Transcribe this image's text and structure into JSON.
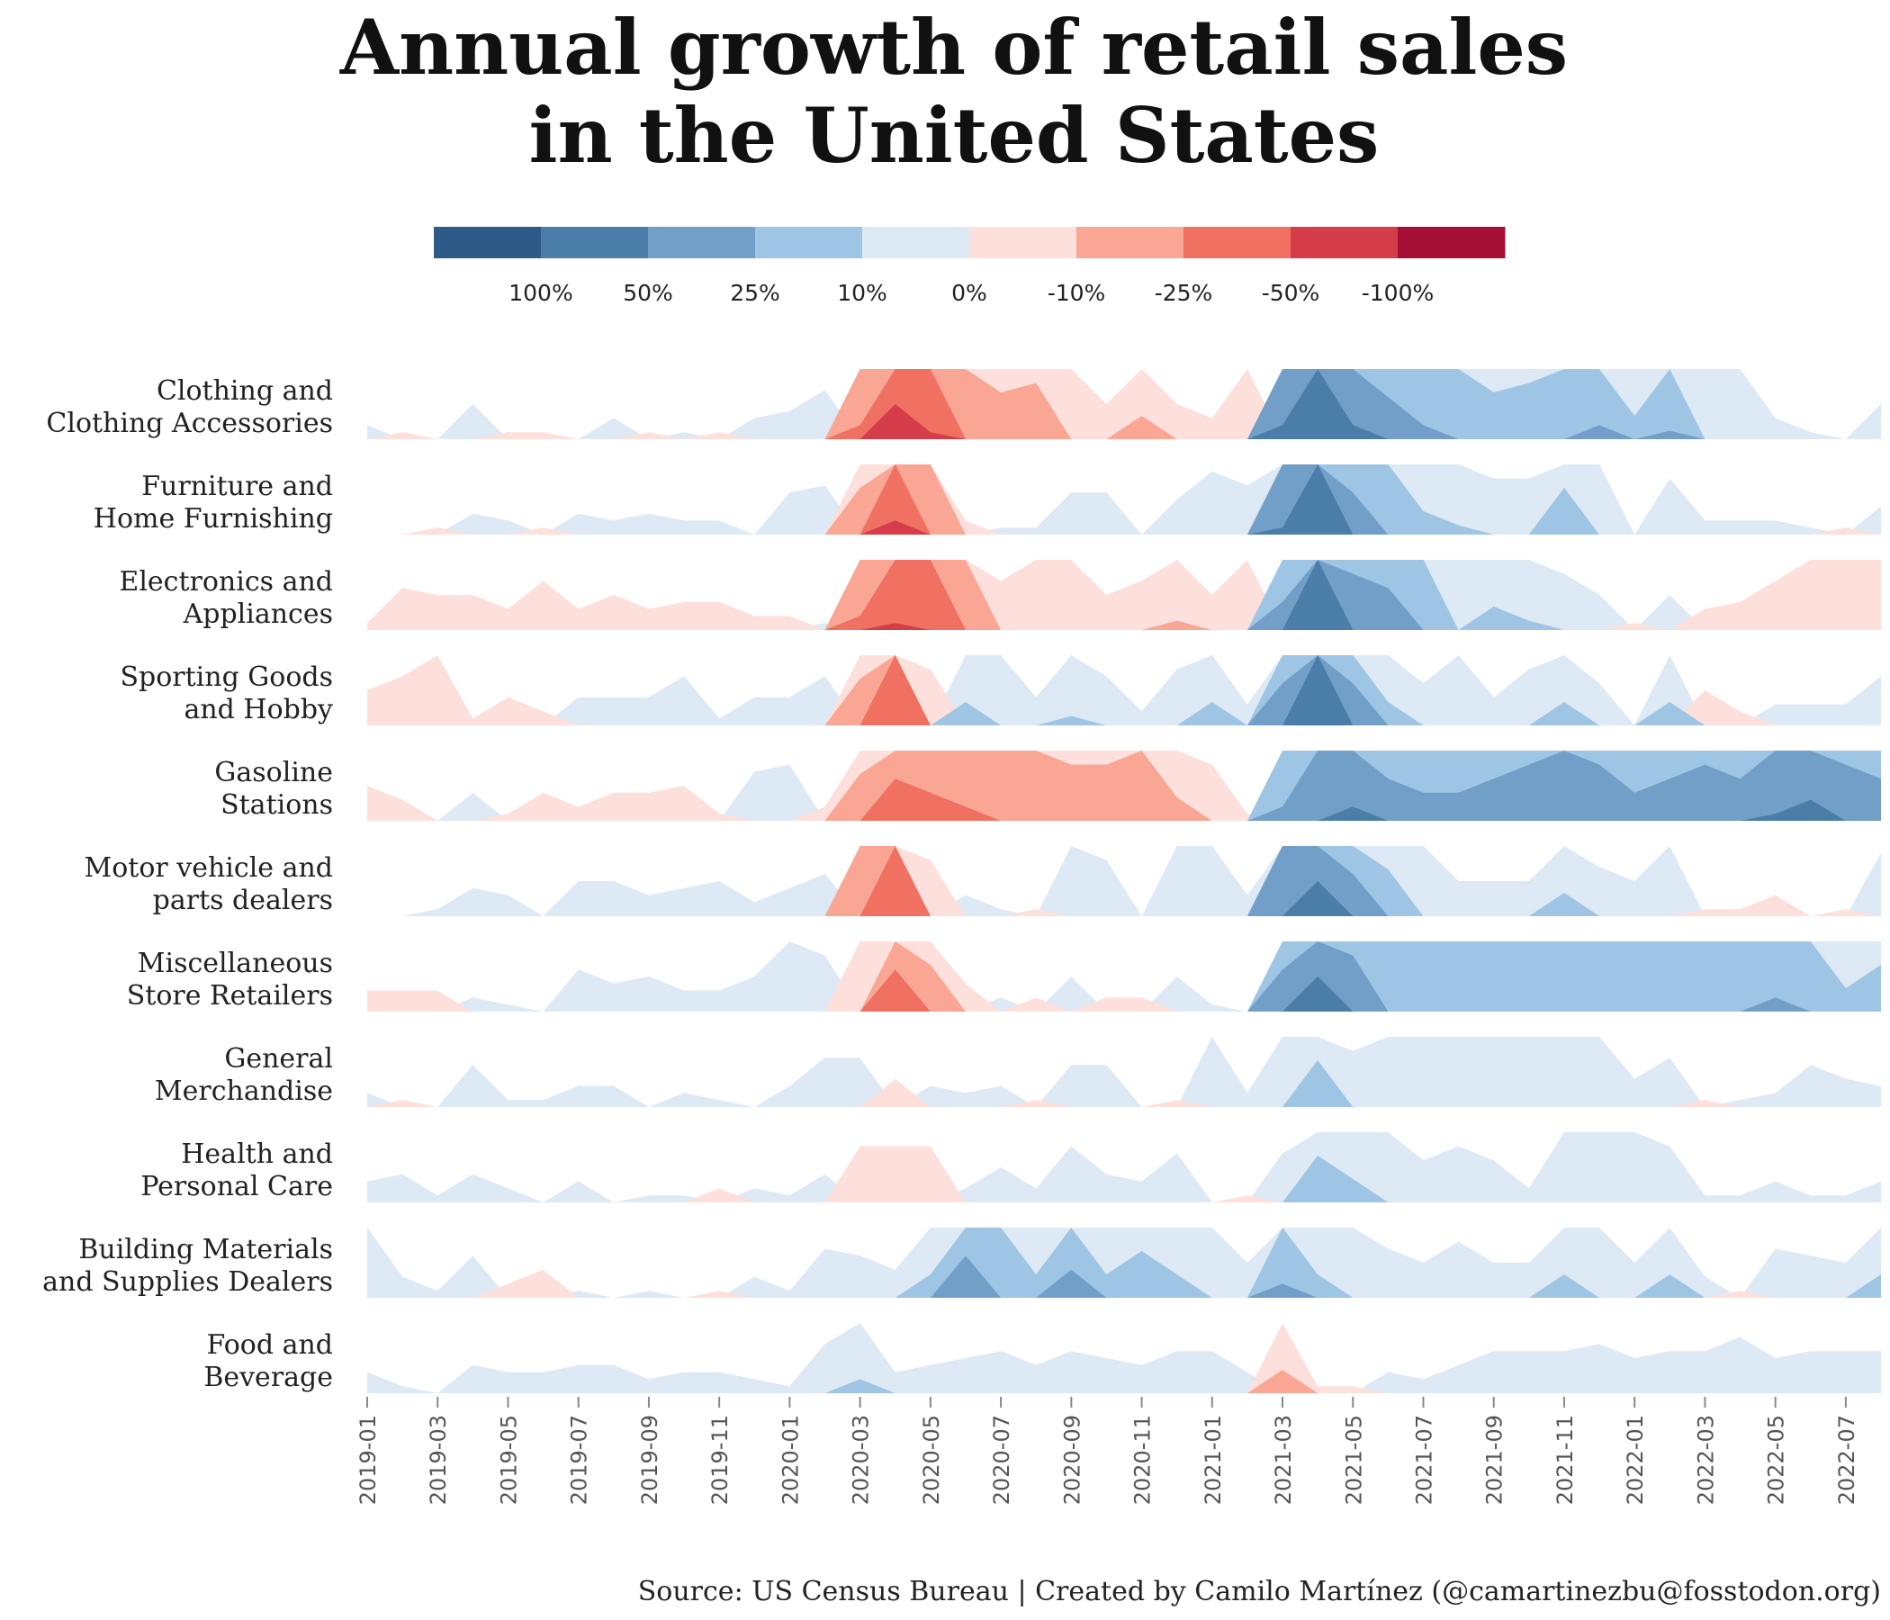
{
  "chart_data": {
    "type": "horizon",
    "title": [
      "Annual growth of retail sales",
      "in the United States"
    ],
    "source": "Source: US Census Bureau | Created by Camilo Martínez (@camartinezbu@fosstodon.org)",
    "legend": {
      "colors": [
        "#2d5a87",
        "#4a7da8",
        "#729fc8",
        "#9fc5e4",
        "#dde9f4",
        "#fde0dc",
        "#f9a794",
        "#f07161",
        "#d63d4a",
        "#a50f35"
      ],
      "labels": [
        "100%",
        "50%",
        "25%",
        "10%",
        "0%",
        "-10%",
        "-25%",
        "-50%",
        "-100%"
      ]
    },
    "band_thresholds": [
      0,
      10,
      25,
      50,
      100
    ],
    "x_tick_labels": [
      "2019-01",
      "2019-03",
      "2019-05",
      "2019-07",
      "2019-09",
      "2019-11",
      "2020-01",
      "2020-03",
      "2020-05",
      "2020-07",
      "2020-09",
      "2020-11",
      "2021-01",
      "2021-03",
      "2021-05",
      "2021-07",
      "2021-09",
      "2021-11",
      "2022-01",
      "2022-03",
      "2022-05",
      "2022-07"
    ],
    "months": [
      "2019-01",
      "2019-02",
      "2019-03",
      "2019-04",
      "2019-05",
      "2019-06",
      "2019-07",
      "2019-08",
      "2019-09",
      "2019-10",
      "2019-11",
      "2019-12",
      "2020-01",
      "2020-02",
      "2020-03",
      "2020-04",
      "2020-05",
      "2020-06",
      "2020-07",
      "2020-08",
      "2020-09",
      "2020-10",
      "2020-11",
      "2020-12",
      "2021-01",
      "2021-02",
      "2021-03",
      "2021-04",
      "2021-05",
      "2021-06",
      "2021-07",
      "2021-08",
      "2021-09",
      "2021-10",
      "2021-11",
      "2021-12",
      "2022-01",
      "2022-02",
      "2022-03",
      "2022-04",
      "2022-05",
      "2022-06",
      "2022-07",
      "2022-08"
    ],
    "series": [
      {
        "name": [
          "Clothing and",
          "Clothing Accessories"
        ],
        "values": [
          2,
          -1,
          0,
          5,
          -1,
          -1,
          0,
          3,
          -1,
          1,
          -1,
          3,
          4,
          7,
          -30,
          -75,
          -55,
          -25,
          -20,
          -22,
          -10,
          -5,
          -15,
          -5,
          -3,
          -10,
          60,
          100,
          60,
          40,
          30,
          25,
          20,
          22,
          25,
          30,
          15,
          28,
          10,
          10,
          3,
          1,
          0,
          5
        ]
      },
      {
        "name": [
          "Furniture and",
          "Home Furnishing"
        ],
        "values": [
          0,
          0,
          -1,
          3,
          2,
          -1,
          3,
          2,
          3,
          2,
          2,
          0,
          6,
          7,
          -20,
          -60,
          -25,
          -2,
          1,
          1,
          6,
          6,
          0,
          5,
          9,
          7,
          55,
          100,
          40,
          25,
          15,
          12,
          8,
          8,
          20,
          10,
          0,
          8,
          2,
          2,
          2,
          1,
          -1,
          4
        ]
      },
      {
        "name": [
          "Electronics and",
          "Appliances"
        ],
        "values": [
          -1,
          -6,
          -5,
          -5,
          -3,
          -7,
          -3,
          -5,
          -3,
          -4,
          -4,
          -2,
          -2,
          1,
          -30,
          -55,
          -50,
          -25,
          -7,
          -10,
          -10,
          -5,
          -7,
          -12,
          -5,
          -10,
          35,
          100,
          45,
          40,
          25,
          10,
          15,
          12,
          8,
          5,
          -1,
          5,
          -3,
          -4,
          -7,
          -10,
          -10,
          -10
        ]
      },
      {
        "name": [
          "Sporting Goods",
          "and Hobby"
        ],
        "values": [
          -5,
          -7,
          -10,
          -1,
          -4,
          -2,
          4,
          4,
          4,
          7,
          1,
          4,
          4,
          7,
          -20,
          -50,
          -8,
          15,
          10,
          4,
          12,
          7,
          2,
          8,
          15,
          3,
          40,
          100,
          40,
          15,
          6,
          10,
          4,
          8,
          15,
          6,
          0,
          15,
          -5,
          -2,
          3,
          3,
          3,
          7
        ]
      },
      {
        "name": [
          "Gasoline",
          "Stations"
        ],
        "values": [
          -5,
          -3,
          0,
          4,
          -1,
          -4,
          -2,
          -4,
          -4,
          -5,
          -1,
          7,
          8,
          -2,
          -20,
          -40,
          -35,
          -30,
          -25,
          -25,
          -22,
          -22,
          -25,
          -15,
          -8,
          -1,
          30,
          50,
          60,
          40,
          35,
          35,
          40,
          45,
          50,
          45,
          35,
          40,
          45,
          40,
          55,
          65,
          45,
          40
        ]
      },
      {
        "name": [
          "Motor vehicle and",
          "parts dealers"
        ],
        "values": [
          0,
          0,
          1,
          4,
          3,
          0,
          5,
          5,
          3,
          4,
          5,
          2,
          4,
          6,
          -25,
          -50,
          -8,
          3,
          1,
          -1,
          10,
          8,
          0,
          10,
          10,
          3,
          50,
          75,
          40,
          20,
          10,
          5,
          5,
          5,
          15,
          7,
          5,
          10,
          -1,
          -1,
          -3,
          0,
          -1,
          9
        ]
      },
      {
        "name": [
          "Miscellaneous",
          "Store Retailers"
        ],
        "values": [
          -3,
          -3,
          -3,
          2,
          1,
          0,
          6,
          4,
          5,
          3,
          3,
          5,
          10,
          8,
          -10,
          -40,
          -20,
          -4,
          2,
          -2,
          5,
          -2,
          -2,
          5,
          1,
          0,
          40,
          75,
          45,
          25,
          25,
          25,
          25,
          25,
          25,
          25,
          25,
          25,
          25,
          25,
          30,
          25,
          15,
          20
        ]
      },
      {
        "name": [
          "General",
          "Merchandise"
        ],
        "values": [
          2,
          -1,
          0,
          6,
          1,
          1,
          3,
          3,
          0,
          2,
          1,
          0,
          3,
          7,
          7,
          -4,
          3,
          2,
          3,
          -1,
          6,
          6,
          0,
          -1,
          10,
          2,
          10,
          20,
          8,
          10,
          10,
          10,
          10,
          10,
          10,
          10,
          4,
          7,
          -1,
          1,
          2,
          6,
          4,
          3
        ]
      },
      {
        "name": [
          "Health and",
          "Personal Care"
        ],
        "values": [
          3,
          4,
          1,
          4,
          2,
          0,
          3,
          0,
          1,
          1,
          -2,
          2,
          1,
          4,
          -8,
          -8,
          -8,
          2,
          5,
          2,
          8,
          4,
          3,
          7,
          0,
          -1,
          7,
          20,
          15,
          10,
          6,
          8,
          6,
          2,
          10,
          10,
          10,
          8,
          1,
          1,
          3,
          1,
          1,
          3
        ]
      },
      {
        "name": [
          "Building Materials",
          "and Supplies Dealers"
        ],
        "values": [
          10,
          3,
          1,
          6,
          -2,
          -4,
          1,
          0,
          1,
          0,
          -1,
          3,
          1,
          7,
          6,
          4,
          15,
          40,
          25,
          15,
          35,
          15,
          20,
          15,
          10,
          5,
          30,
          15,
          10,
          7,
          5,
          8,
          5,
          5,
          15,
          10,
          5,
          15,
          3,
          -1,
          7,
          6,
          5,
          15
        ]
      },
      {
        "name": [
          "Food and",
          "Beverage"
        ],
        "values": [
          3,
          1,
          0,
          4,
          3,
          3,
          4,
          4,
          2,
          3,
          3,
          2,
          1,
          7,
          13,
          3,
          4,
          5,
          6,
          4,
          6,
          5,
          4,
          6,
          6,
          3,
          -15,
          -1,
          -1,
          3,
          2,
          4,
          6,
          6,
          6,
          7,
          5,
          6,
          6,
          8,
          5,
          6,
          6,
          6
        ]
      }
    ]
  }
}
